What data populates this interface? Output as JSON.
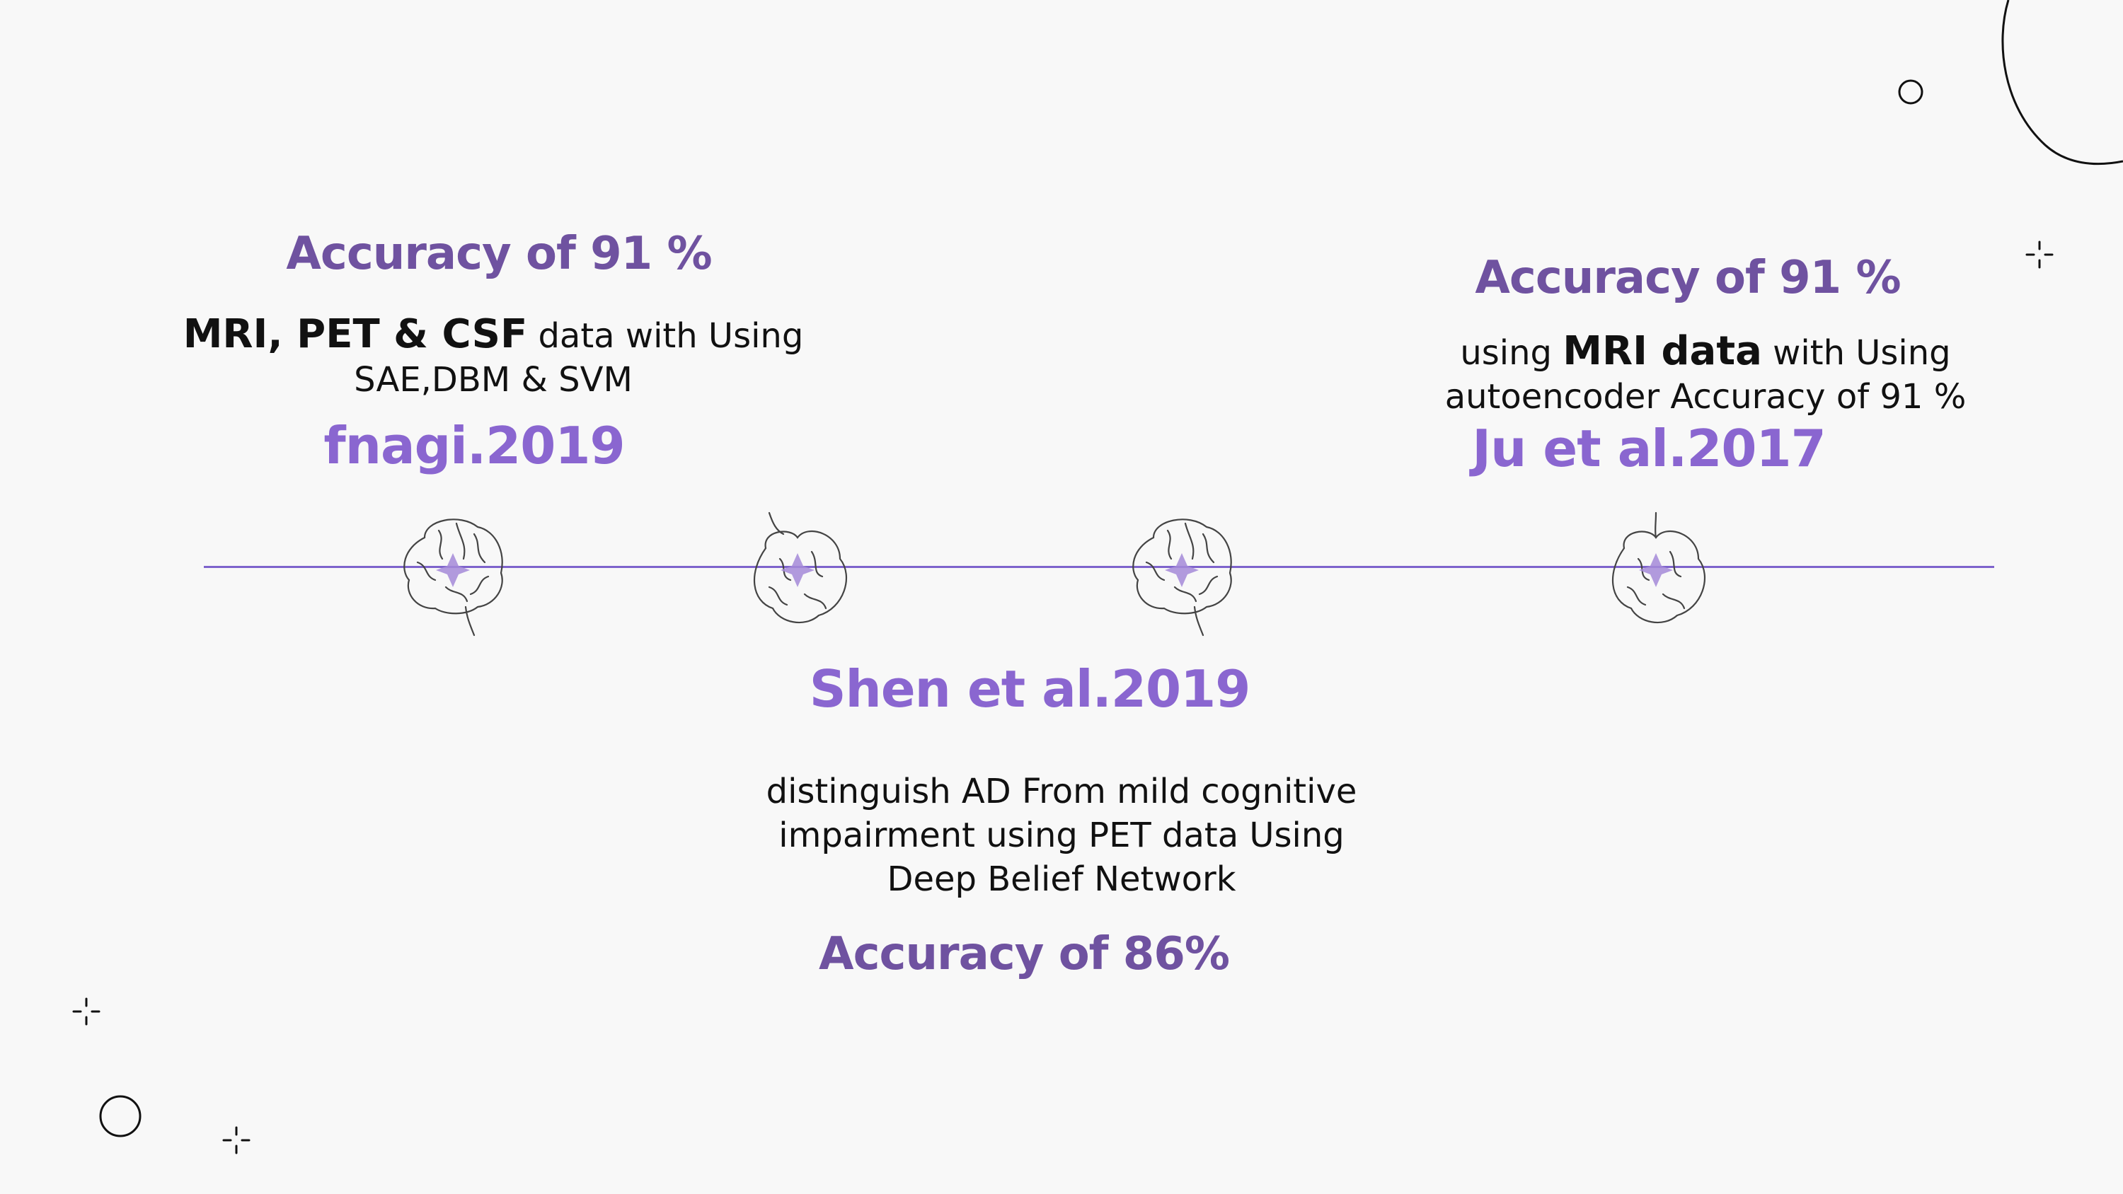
{
  "slide": {
    "entries": [
      {
        "accuracy": "Accuracy of 91 %",
        "desc_bold_1": "MRI, PET & CSF",
        "desc_text_1": " data with Using",
        "desc_line_2": "SAE,DBM & SVM",
        "reference": "fnagi.2019"
      },
      {
        "reference": "Shen et al.2019",
        "desc_line_1": "distinguish AD From mild cognitive",
        "desc_line_2": "impairment using PET data Using",
        "desc_line_3": "Deep Belief Network",
        "accuracy": "Accuracy of 86%"
      },
      {
        "accuracy": "Accuracy of 91 %",
        "desc_text_1": "using ",
        "desc_bold_1": "MRI data",
        "desc_text_2": " with Using",
        "desc_line_2": "autoencoder Accuracy of 91 %",
        "reference": "Ju et al.2017"
      }
    ],
    "colors": {
      "accent": "#7e63cc",
      "accuracy_text": "#6f52a0",
      "reference_text": "#8a66d0",
      "background": "#f8f8f8"
    },
    "icons": [
      "brain-icon",
      "sparkle-icon",
      "circle-icon"
    ]
  }
}
